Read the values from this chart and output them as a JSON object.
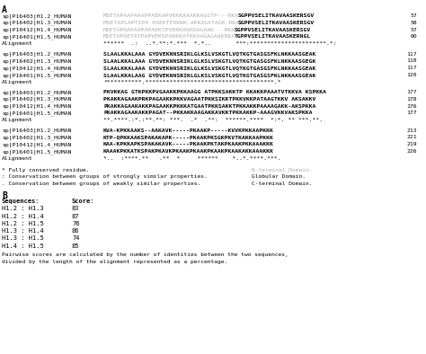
{
  "background_color": "#ffffff",
  "text_color": "#000000",
  "gray_color": "#aaaaaa",
  "figsize": [
    4.74,
    3.94
  ],
  "dpi": 100,
  "block1": [
    [
      "sp|P16403|H1.2_HUMAN",
      "MSETAPAAPAAAPPAEKAPVKKKAAAKKAGGTP---RKA",
      "SGPPVSELITKAVAASKERSGV",
      "57"
    ],
    [
      "sp|P16402|H1.3_HUMAN",
      "MSETAPLAPTIPA PAEKTPVKKK-AKKAGATAGK-RKA",
      "SGPPVSELITKAVAASKERSGV",
      "58"
    ],
    [
      "sp|P10412|H1.4_HUMAN",
      "MSETAPAAPAAPAPAEKTPVKKKARRSAGAAK---RKA",
      "SGPPVSELITKAVAASKERSGV",
      "57"
    ],
    [
      "sp|P16401|H1.5_HUMAN",
      "MSETAPAETATPAPVEKSPAKKKATKKAAGAGAAKRKA",
      "TGPPVSELITKAVAASKERNGL",
      "60"
    ],
    [
      "Alignment",
      "******  .:  ..*.**:*.***  *.*..       ***:**********************.*:",
      null,
      null
    ]
  ],
  "block2": [
    [
      "sp|P16403|H1.2_HUMAN",
      "SLAALKKALAAA GYDVEKNNSRIKLGLKSLVSKGTLVQTKGTGASGSFKLNKKAASGEAK",
      "117"
    ],
    [
      "sp|P16402|H1.3_HUMAN",
      "SLAALKKALAAA GYDVEKNNSRIKLGLKSLVSKGTLVQTKGTGASGSFKLNKKAASGEGK",
      "118"
    ],
    [
      "sp|P10412|H1.4_HUMAN",
      "SLAALKKALAAA GYDVEKNNSRIKLGLKSLVSKGTLVQTKGTGASGSFKLNKKAASGEAK",
      "117"
    ],
    [
      "sp|P16401|H1.5_HUMAN",
      "SLAALKKALAAG GYDVEKNNSRIKLGLKSLVSKGTLVQTKGTGASGSFKLNKKAASGEAK",
      "120"
    ],
    [
      "Alignment",
      "***********.*************************************.*",
      null
    ]
  ],
  "block3": [
    [
      "sp|P16403|H1.2_HUMAN",
      "PKVKKAG GTKPKKPVGAAKKPKKAAGG ATPKKSAKKTP KKAKKPAAATVTKKVA KSPKKA",
      "177"
    ],
    [
      "sp|P16402|H1.3_HUMAN",
      "PKAKKAGAAKPRKPAGAAKKPKKVAGAATPKKSIKKTPKKVKKPATAAGTKKV AKSAKKV",
      "178"
    ],
    [
      "sp|P10412|H1.4_HUMAN",
      "PKAKKAGAAKAKKPAGAAKKPKKKATGAATPKKSAKKTPKKAKKPAAAAGAKK-AKSPKKA",
      "176"
    ],
    [
      "sp|P16401|H1.5_HUMAN",
      "PKAKKAGAAKAKKPAGAT--PKKAKKAAGAKKAVKKTPKKAKKP-AAAGVKKVAKSPKKA",
      "177"
    ],
    [
      "Alignment",
      "**.****.:*.:**.**: ***.  .*  .**:  ******.****  *:*. ** ***.**.",
      null
    ]
  ],
  "block4": [
    [
      "sp|P16403|H1.2_HUMAN",
      "KVA-KPKKAAKS--AAKAVK-----PKAAKP-----KVVKPKKAAPKKK",
      "213"
    ],
    [
      "sp|P16402|H1.3_HUMAN",
      "KTP-QPKKAAKSPAKAKAPK-----PKAAKPKSGKPKVTKAKKAAPKKK",
      "221"
    ],
    [
      "sp|P10412|H1.4_HUMAN",
      "KAA-KPKKAPKSPAKAKAVK-----PKAAKPKTAKPKAAKPKKAAAKKK",
      "219"
    ],
    [
      "sp|P16401|H1.5_HUMAN",
      "KAAAKPKKATKSPAKPKAVKPKAAKPKAAKPKAAKPKAAKAKKAAAKKK",
      "226"
    ],
    [
      "Alignment",
      "*..  :****.**   .**  *     ******    *..*.****.***.  ",
      null
    ]
  ],
  "legend": [
    [
      "*",
      " Fully conserved residue.",
      "N-terminal Domain.",
      true
    ],
    [
      ":",
      " Conservation between groups of strongly similar properties.",
      "Globular Domain.",
      false
    ],
    [
      ".",
      " Conservation between groups of weakly similar properties.",
      "C-terminal Domain.",
      false
    ]
  ],
  "score_header": [
    "Sequences:",
    "Score:"
  ],
  "score_rows": [
    [
      "H1.2 : H1.3",
      "83"
    ],
    [
      "H1.2 : H1.4",
      "87"
    ],
    [
      "H1.2 : H1.5",
      "76"
    ],
    [
      "H1.3 : H1.4",
      "86"
    ],
    [
      "H1.3 : H1.5",
      "74"
    ],
    [
      "H1.4 : H1.5",
      "85"
    ]
  ],
  "footer": "Pairwise scores are calculated by the number of identities between the two sequences,\ndivided by the length of the alignment represented as a percentage."
}
